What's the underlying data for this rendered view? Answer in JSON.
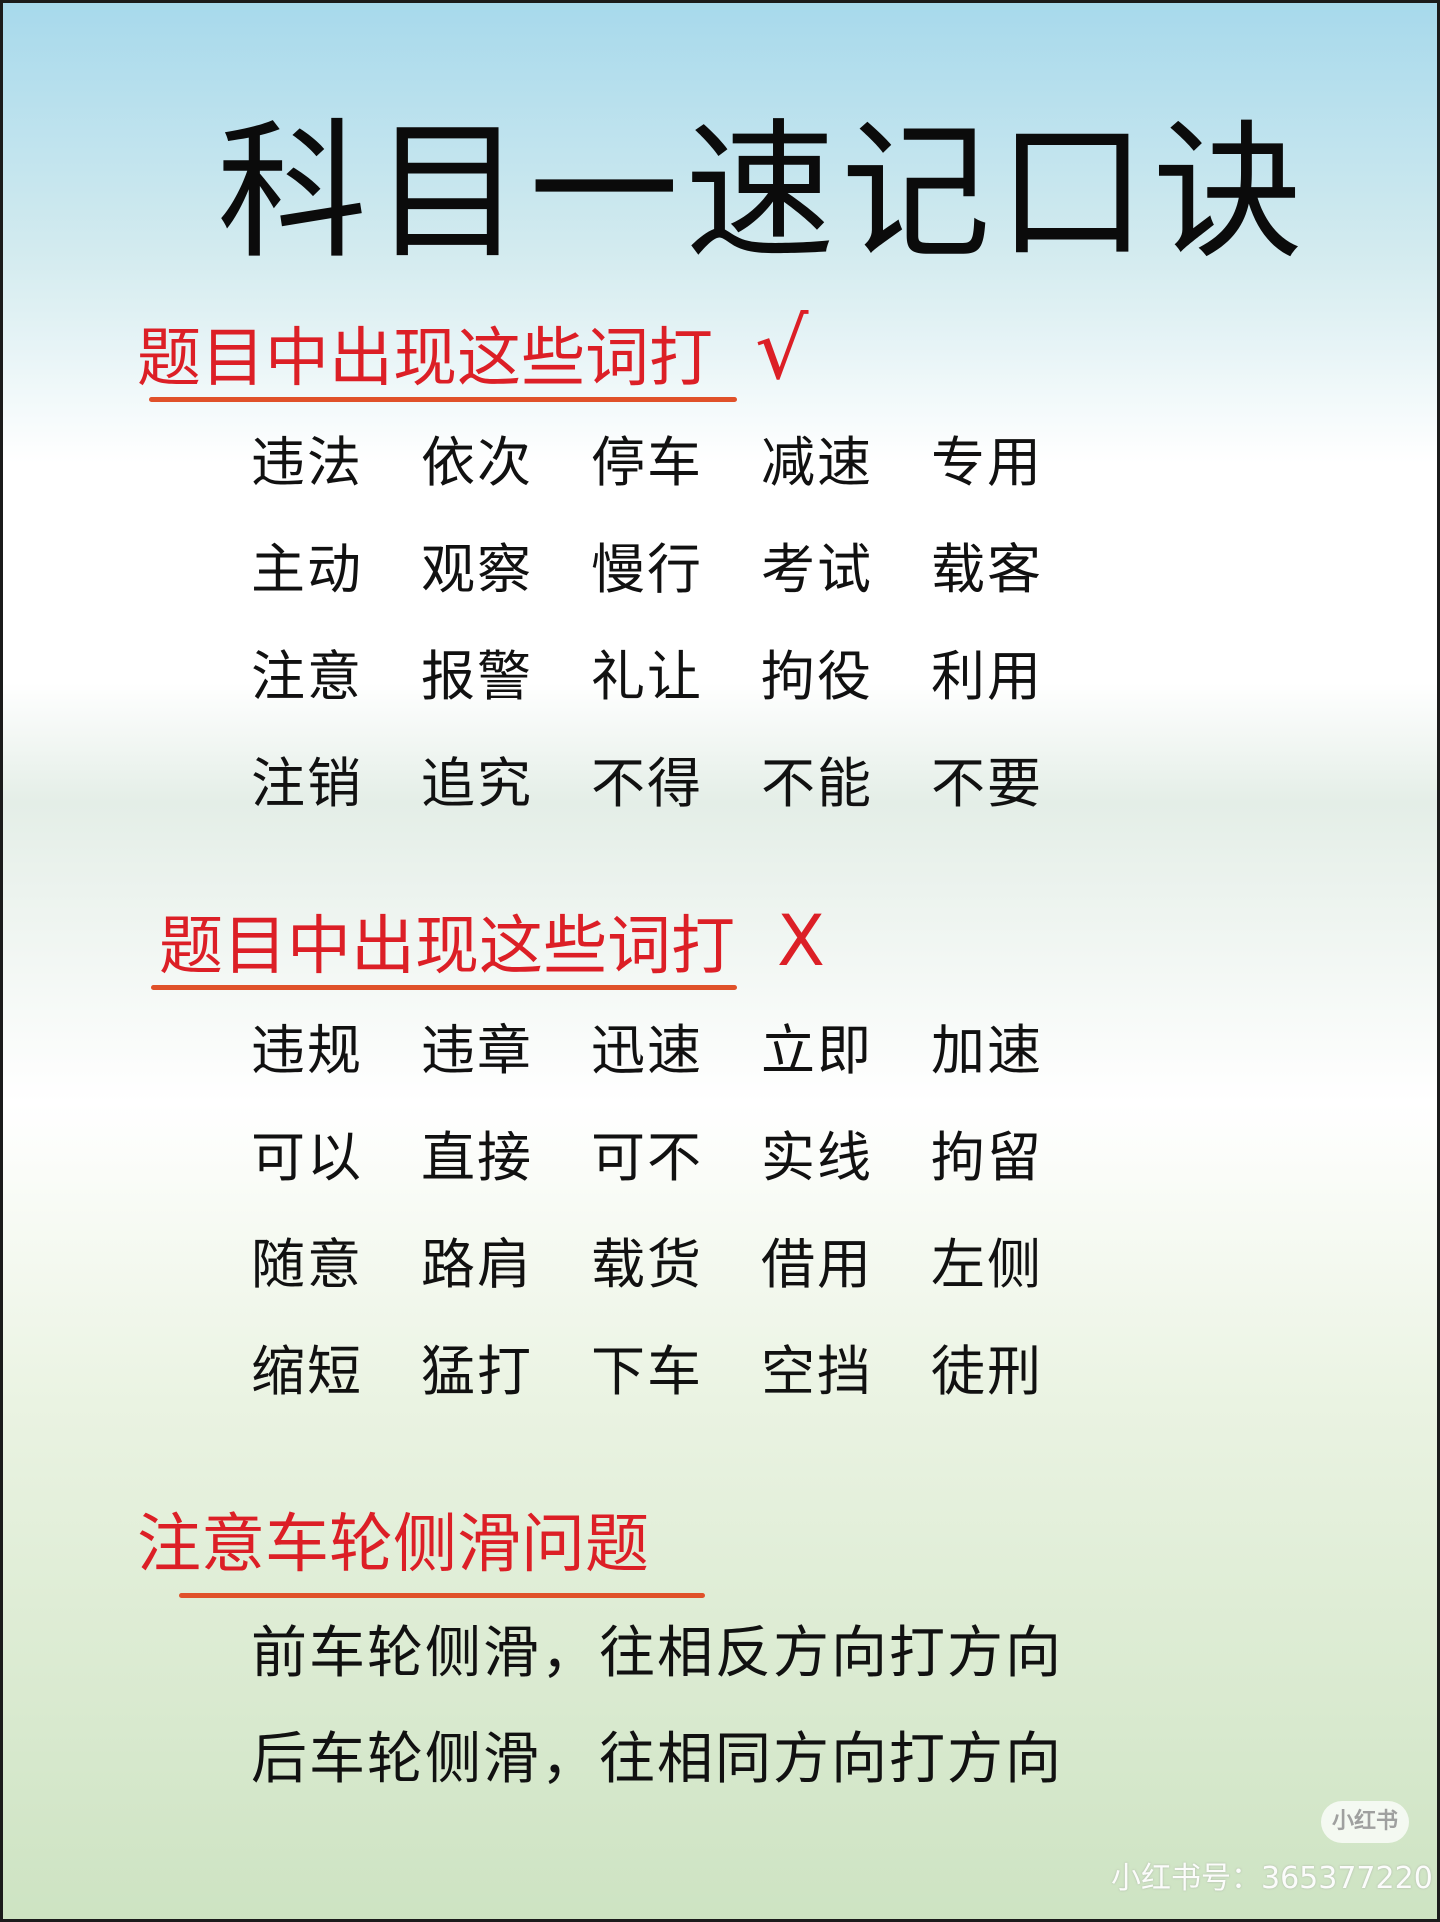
{
  "title": "科目一速记口诀",
  "sections": [
    {
      "heading": "题目中出现这些词打",
      "mark": "√",
      "words": [
        [
          "违法",
          "依次",
          "停车",
          "减速",
          "专用"
        ],
        [
          "主动",
          "观察",
          "慢行",
          "考试",
          "载客"
        ],
        [
          "注意",
          "报警",
          "礼让",
          "拘役",
          "利用"
        ],
        [
          "注销",
          "追究",
          "不得",
          "不能",
          "不要"
        ]
      ]
    },
    {
      "heading": "题目中出现这些词打",
      "mark": "X",
      "words": [
        [
          "违规",
          "违章",
          "迅速",
          "立即",
          "加速"
        ],
        [
          "可以",
          "直接",
          "可不",
          "实线",
          "拘留"
        ],
        [
          "随意",
          "路肩",
          "载货",
          "借用",
          "左侧"
        ],
        [
          "缩短",
          "猛打",
          "下车",
          "空挡",
          "徒刑"
        ]
      ]
    },
    {
      "heading": "注意车轮侧滑问题",
      "lines": [
        "前车轮侧滑，往相反方向打方向",
        "后车轮侧滑，往相同方向打方向"
      ]
    }
  ],
  "watermark": {
    "logo": "小红书",
    "id_text": "小红书号：365377220"
  },
  "colors": {
    "heading": "#dc1f26",
    "underline": "#e0512a",
    "text": "#111111"
  }
}
